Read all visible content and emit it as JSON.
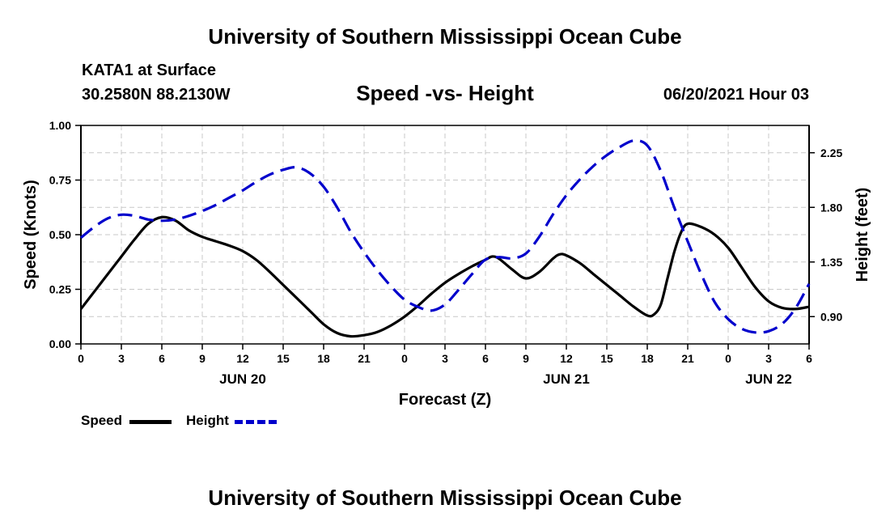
{
  "header": {
    "top_title": "University of Southern Mississippi Ocean Cube",
    "bottom_title": "University of Southern Mississippi Ocean Cube",
    "station": "KATA1 at Surface",
    "location": "30.2580N  88.2130W",
    "date": "06/20/2021 Hour 03"
  },
  "legend": {
    "speed_label": "Speed",
    "height_label": "Height"
  },
  "colors": {
    "speed": "#000000",
    "height": "#0000cc",
    "grid": "#c8c8c8"
  },
  "chart_data": {
    "type": "line",
    "title": "Speed -vs- Height",
    "xlabel": "Forecast (Z)",
    "ylabel": "Speed (Knots)",
    "y2label": "Height (feet)",
    "x_range_hours": [
      0,
      54
    ],
    "x_ticks": [
      {
        "h": 0,
        "label": "0"
      },
      {
        "h": 3,
        "label": "3"
      },
      {
        "h": 6,
        "label": "6"
      },
      {
        "h": 9,
        "label": "9"
      },
      {
        "h": 12,
        "label": "12"
      },
      {
        "h": 15,
        "label": "15"
      },
      {
        "h": 18,
        "label": "18"
      },
      {
        "h": 21,
        "label": "21"
      },
      {
        "h": 24,
        "label": "0"
      },
      {
        "h": 27,
        "label": "3"
      },
      {
        "h": 30,
        "label": "6"
      },
      {
        "h": 33,
        "label": "9"
      },
      {
        "h": 36,
        "label": "12"
      },
      {
        "h": 39,
        "label": "15"
      },
      {
        "h": 42,
        "label": "18"
      },
      {
        "h": 45,
        "label": "21"
      },
      {
        "h": 48,
        "label": "0"
      },
      {
        "h": 51,
        "label": "3"
      },
      {
        "h": 54,
        "label": "6"
      }
    ],
    "date_labels": [
      {
        "h": 12,
        "label": "JUN 20"
      },
      {
        "h": 36,
        "label": "JUN 21"
      },
      {
        "h": 51,
        "label": "JUN 22"
      }
    ],
    "ylim": [
      0,
      1.0
    ],
    "y_ticks": [
      {
        "v": 0,
        "label": "0.00"
      },
      {
        "v": 0.25,
        "label": "0.25"
      },
      {
        "v": 0.5,
        "label": "0.50"
      },
      {
        "v": 0.75,
        "label": "0.75"
      },
      {
        "v": 1.0,
        "label": "1.00"
      }
    ],
    "y2lim": [
      0.675,
      2.475
    ],
    "y2_ticks": [
      {
        "v": 0.9,
        "label": "0.90"
      },
      {
        "v": 1.35,
        "label": "1.35"
      },
      {
        "v": 1.8,
        "label": "1.80"
      },
      {
        "v": 2.25,
        "label": "2.25"
      }
    ],
    "grid": true,
    "series": [
      {
        "name": "Speed",
        "axis": "left",
        "style": "solid",
        "points": [
          [
            0,
            0.16
          ],
          [
            1,
            0.24
          ],
          [
            2,
            0.32
          ],
          [
            3,
            0.4
          ],
          [
            4,
            0.48
          ],
          [
            5,
            0.55
          ],
          [
            6,
            0.58
          ],
          [
            7,
            0.565
          ],
          [
            8,
            0.52
          ],
          [
            9,
            0.49
          ],
          [
            10,
            0.47
          ],
          [
            11,
            0.45
          ],
          [
            12,
            0.425
          ],
          [
            13,
            0.385
          ],
          [
            14,
            0.33
          ],
          [
            15,
            0.27
          ],
          [
            16,
            0.21
          ],
          [
            17,
            0.15
          ],
          [
            18,
            0.09
          ],
          [
            19,
            0.05
          ],
          [
            20,
            0.035
          ],
          [
            21,
            0.04
          ],
          [
            22,
            0.055
          ],
          [
            23,
            0.085
          ],
          [
            24,
            0.125
          ],
          [
            25,
            0.175
          ],
          [
            26,
            0.23
          ],
          [
            27,
            0.28
          ],
          [
            28,
            0.32
          ],
          [
            29,
            0.355
          ],
          [
            30,
            0.385
          ],
          [
            30.5,
            0.4
          ],
          [
            31,
            0.39
          ],
          [
            32,
            0.34
          ],
          [
            33,
            0.3
          ],
          [
            34,
            0.33
          ],
          [
            35,
            0.39
          ],
          [
            35.5,
            0.41
          ],
          [
            36,
            0.405
          ],
          [
            37,
            0.37
          ],
          [
            38,
            0.32
          ],
          [
            39,
            0.27
          ],
          [
            40,
            0.22
          ],
          [
            41,
            0.17
          ],
          [
            42,
            0.13
          ],
          [
            42.5,
            0.135
          ],
          [
            43,
            0.18
          ],
          [
            43.5,
            0.3
          ],
          [
            44,
            0.42
          ],
          [
            44.5,
            0.51
          ],
          [
            45,
            0.55
          ],
          [
            46,
            0.535
          ],
          [
            47,
            0.5
          ],
          [
            48,
            0.44
          ],
          [
            49,
            0.35
          ],
          [
            50,
            0.26
          ],
          [
            51,
            0.195
          ],
          [
            52,
            0.165
          ],
          [
            53,
            0.16
          ],
          [
            54,
            0.17
          ]
        ]
      },
      {
        "name": "Height",
        "axis": "right",
        "style": "dashed",
        "points": [
          [
            0,
            1.55
          ],
          [
            1,
            1.64
          ],
          [
            2,
            1.71
          ],
          [
            3,
            1.74
          ],
          [
            4,
            1.73
          ],
          [
            5,
            1.7
          ],
          [
            6,
            1.69
          ],
          [
            7,
            1.7
          ],
          [
            8,
            1.73
          ],
          [
            9,
            1.77
          ],
          [
            10,
            1.82
          ],
          [
            11,
            1.88
          ],
          [
            12,
            1.94
          ],
          [
            13,
            2.01
          ],
          [
            14,
            2.07
          ],
          [
            15,
            2.11
          ],
          [
            16,
            2.13
          ],
          [
            17,
            2.08
          ],
          [
            18,
            1.97
          ],
          [
            19,
            1.8
          ],
          [
            20,
            1.6
          ],
          [
            21,
            1.43
          ],
          [
            22,
            1.28
          ],
          [
            23,
            1.15
          ],
          [
            24,
            1.04
          ],
          [
            25,
            0.98
          ],
          [
            26,
            0.95
          ],
          [
            27,
            1.0
          ],
          [
            28,
            1.12
          ],
          [
            29,
            1.25
          ],
          [
            30,
            1.37
          ],
          [
            31,
            1.39
          ],
          [
            32,
            1.38
          ],
          [
            33,
            1.42
          ],
          [
            34,
            1.56
          ],
          [
            35,
            1.74
          ],
          [
            36,
            1.9
          ],
          [
            37,
            2.03
          ],
          [
            38,
            2.14
          ],
          [
            39,
            2.23
          ],
          [
            40,
            2.3
          ],
          [
            41,
            2.35
          ],
          [
            42,
            2.31
          ],
          [
            43,
            2.1
          ],
          [
            44,
            1.8
          ],
          [
            45,
            1.52
          ],
          [
            46,
            1.25
          ],
          [
            47,
            1.02
          ],
          [
            48,
            0.88
          ],
          [
            49,
            0.8
          ],
          [
            50,
            0.77
          ],
          [
            51,
            0.78
          ],
          [
            52,
            0.84
          ],
          [
            53,
            0.97
          ],
          [
            54,
            1.17
          ]
        ]
      }
    ]
  }
}
